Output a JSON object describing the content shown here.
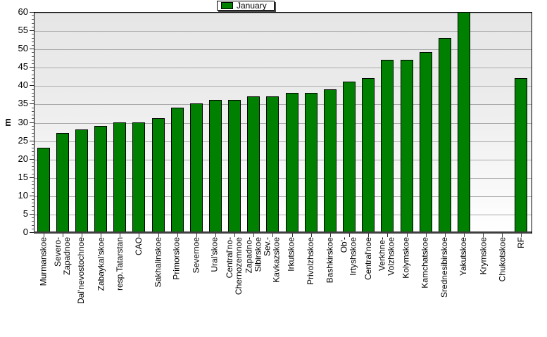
{
  "chart_data": {
    "type": "bar",
    "title": "",
    "xlabel": "",
    "ylabel": "m",
    "ylim": [
      0,
      60
    ],
    "ytick_step": 5,
    "yticks": [
      0,
      5,
      10,
      15,
      20,
      25,
      30,
      35,
      40,
      45,
      50,
      55,
      60
    ],
    "grid": true,
    "legend_position": "top-center",
    "plot_background_gradient": [
      "#e6e6e6",
      "#ffffff"
    ],
    "gridline_color": "#aaaaaa",
    "axis_line_color": "#3f3f3f",
    "categories": [
      "Murmanskoe",
      "Severo-\nZapadnoe",
      "Dal'nevostochnoe",
      "Zabaykal'skoe",
      "resp.Tatarstan",
      "CAO",
      "Sakhalinskoe",
      "Primorskoe",
      "Severnoe",
      "Ural'skoe",
      "Central'no-\nChernozemnoe",
      "Zapadno-\nSibirskoe",
      "Sev.-\nKavkazskoe",
      "Irkutskoe",
      "Privolzhskoe",
      "Bashkirskoe",
      "Ob'-\nIrtyshskoe",
      "Central'noe",
      "Verkhne-\nVolzhskoe",
      "Kolymskoe",
      "Kamchatskoe",
      "Srednesibirskoe",
      "Yakutskoe",
      "Krymskoe",
      "Chukotskoe",
      "RF"
    ],
    "series": [
      {
        "name": "January",
        "color": "#008000",
        "border_color": "#000000",
        "values": [
          23,
          27,
          28,
          29,
          30,
          30,
          31,
          34,
          35,
          36,
          36,
          37,
          37,
          38,
          38,
          39,
          41,
          42,
          47,
          47,
          49,
          53,
          60,
          null,
          null,
          42
        ]
      }
    ]
  }
}
